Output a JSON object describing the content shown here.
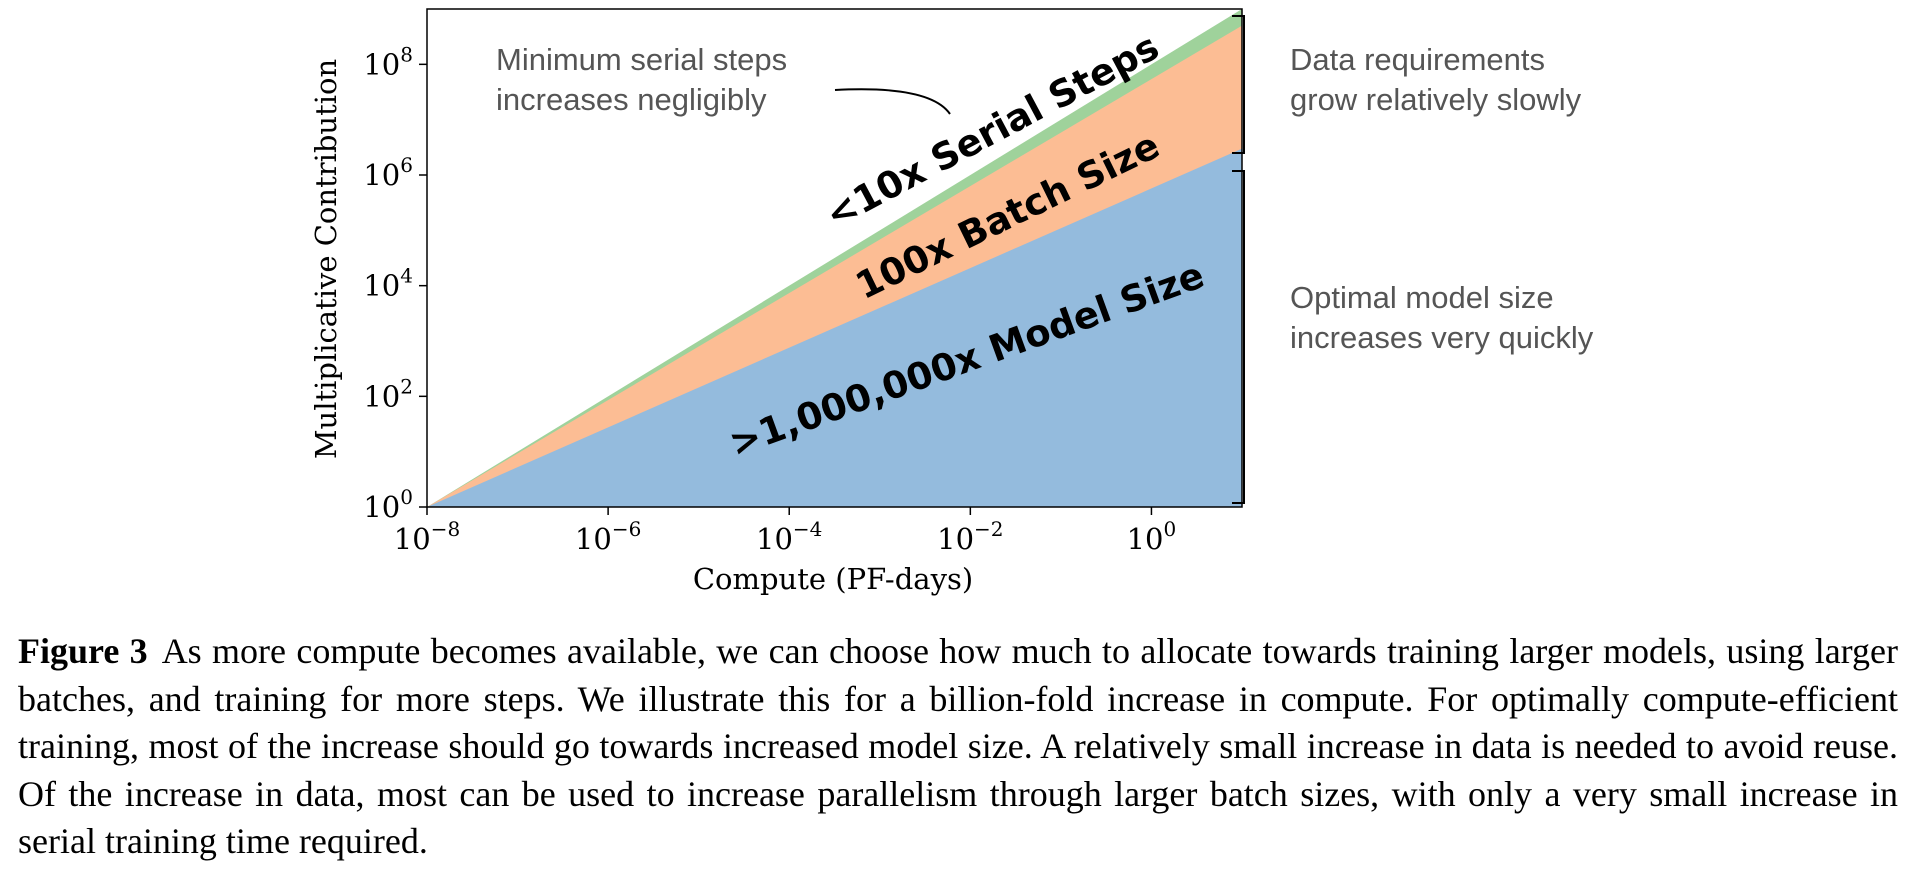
{
  "chart_data": {
    "type": "area",
    "stacked": true,
    "x_scale": "log",
    "y_scale": "log",
    "xlim": [
      1e-08,
      10
    ],
    "ylim": [
      1,
      1000000000.0
    ],
    "xlabel": "Compute (PF-days)",
    "ylabel": "Multiplicative Contribution",
    "x_ticks": [
      {
        "base": "10",
        "exp": "−8",
        "value": 1e-08
      },
      {
        "base": "10",
        "exp": "−6",
        "value": 1e-06
      },
      {
        "base": "10",
        "exp": "−4",
        "value": 0.0001
      },
      {
        "base": "10",
        "exp": "−2",
        "value": 0.01
      },
      {
        "base": "10",
        "exp": "0",
        "value": 1
      }
    ],
    "y_ticks": [
      {
        "base": "10",
        "exp": "0",
        "value": 1
      },
      {
        "base": "10",
        "exp": "2",
        "value": 100
      },
      {
        "base": "10",
        "exp": "4",
        "value": 10000
      },
      {
        "base": "10",
        "exp": "6",
        "value": 1000000
      },
      {
        "base": "10",
        "exp": "8",
        "value": 100000000
      }
    ],
    "x": [
      1e-08,
      10
    ],
    "series": [
      {
        "name": ">1,000,000x Model Size",
        "color": "#94bbdd",
        "top_values": [
          1,
          3000000
        ]
      },
      {
        "name": "100x Batch Size",
        "color": "#fcbd94",
        "top_values": [
          1,
          500000000
        ]
      },
      {
        "name": "<10x Serial Steps",
        "color": "#9fd29b",
        "top_values": [
          1,
          1000000000
        ]
      }
    ],
    "region_labels": [
      ">1,000,000x Model Size",
      "100x Batch Size",
      "<10x Serial Steps"
    ],
    "annotations": {
      "serial_note": [
        "Minimum serial steps",
        "increases negligibly"
      ],
      "data_note": [
        "Data requirements",
        "grow relatively slowly"
      ],
      "model_note": [
        "Optimal model size",
        "increases very quickly"
      ]
    }
  },
  "caption": {
    "label": "Figure 3",
    "text": "As more compute becomes available, we can choose how much to allocate towards training larger models, using larger batches, and training for more steps. We illustrate this for a billion-fold increase in compute. For optimally compute-efficient training, most of the increase should go towards increased model size. A relatively small increase in data is needed to avoid reuse. Of the increase in data, most can be used to increase parallelism through larger batch sizes, with only a very small increase in serial training time required."
  }
}
